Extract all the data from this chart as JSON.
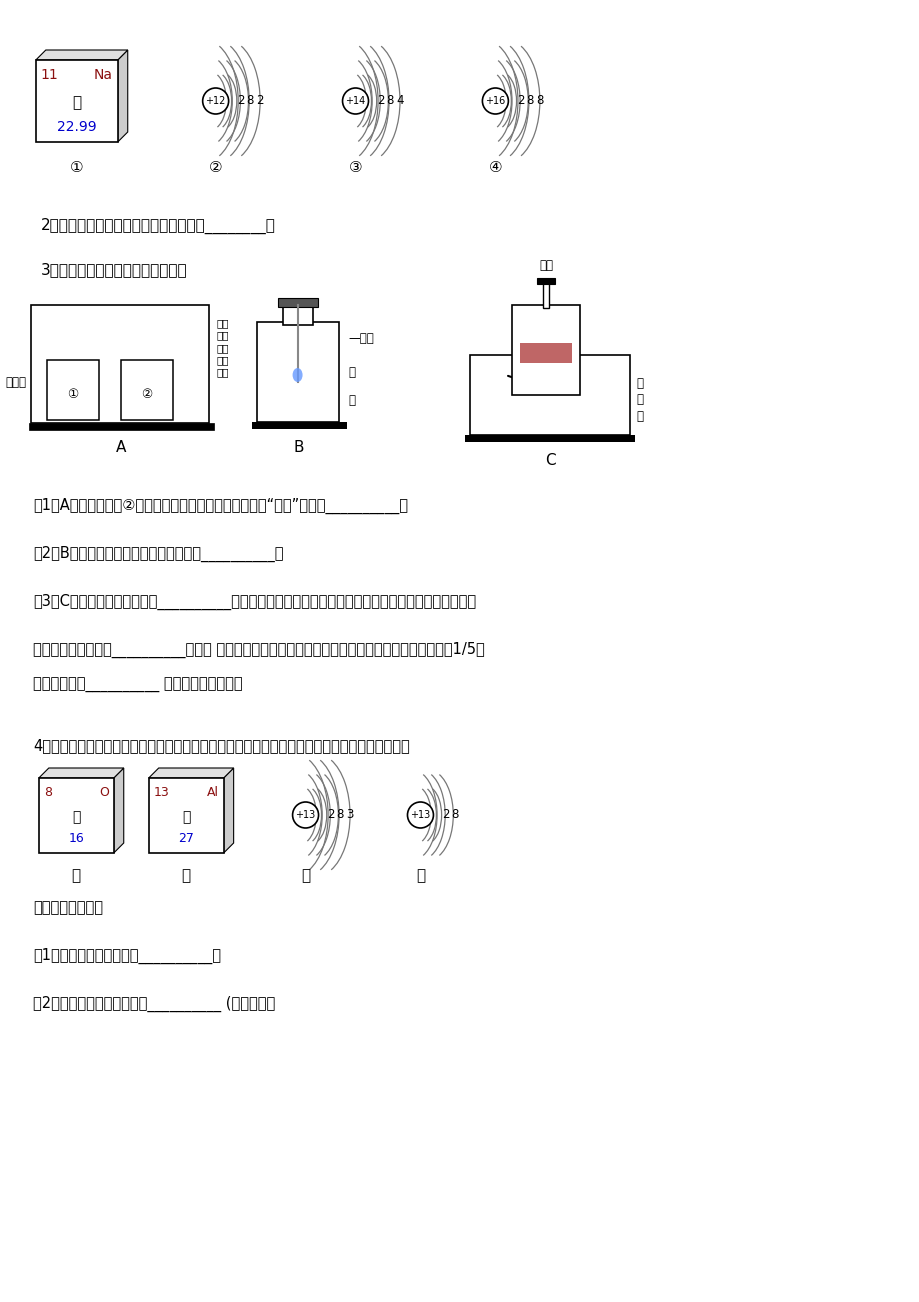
{
  "bg_color": "#ffffff",
  "text_color": "#000000",
  "title_color": "#8B0000",
  "blue_color": "#0000CD",
  "q2_text": "2、能保持五氧化二磷化学性质的粒子是________。",
  "q3_text": "3、下图是初中化学中常见的实验。",
  "q3_q1": "（1）A中现象：烧杯②中溶液变红。请用分子的知识解释“变红”的原因__________。",
  "q3_q2": "（2）B中集气瓶底部有少量水，其作用是__________。",
  "q3_q3a": "（3）C中反应的符号表达式是__________实验完毕，集气瓶内水面上升到一定高度后，不能继续上升，这",
  "q3_q3b": "种现象说明氮气具有__________的性质 若从烧杯中进入集气瓶内水的体积明显小于瓶内原空气体积的1/5，",
  "q3_q3c": "可能的原因是__________ （写出一条即可）。",
  "q4_text": "4、在元素周期表中有关氧元素、铝元素的信息如图中甲乙所示，丙丁为两种粒子的结构示意图。",
  "q4_q1": "请回答下列问题：",
  "q4_q2": "（1）铝元素的原子序数为__________。",
  "q4_q3": "（2）铝离子的结构示意图是__________ (丙或丁）；"
}
